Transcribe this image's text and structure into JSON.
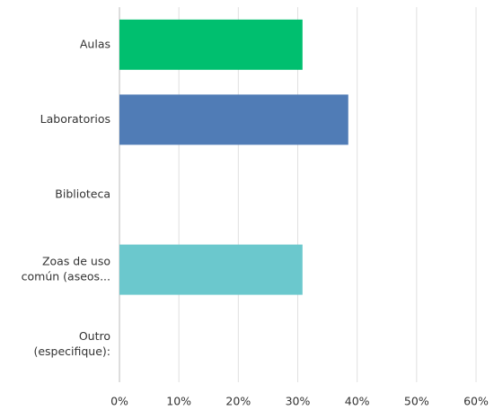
{
  "chart_data": {
    "type": "bar",
    "orientation": "horizontal",
    "categories": [
      [
        "Aulas"
      ],
      [
        "Laboratorios"
      ],
      [
        "Biblioteca"
      ],
      [
        "Zoas de uso",
        "común (aseos..."
      ],
      [
        "Outro",
        "(especifique):"
      ]
    ],
    "values": [
      30.8,
      38.5,
      0,
      30.8,
      0
    ],
    "colors": [
      "#00bf6f",
      "#507cb6",
      "#507cb6",
      "#6bc8cd",
      "#6bc8cd"
    ],
    "xlim": [
      0,
      60
    ],
    "xticks": [
      {
        "value": 0,
        "label": "0%"
      },
      {
        "value": 10,
        "label": "10%"
      },
      {
        "value": 20,
        "label": "20%"
      },
      {
        "value": 30,
        "label": "30%"
      },
      {
        "value": 40,
        "label": "40%"
      },
      {
        "value": 50,
        "label": "50%"
      },
      {
        "value": 60,
        "label": "60%"
      }
    ],
    "grid": true
  }
}
